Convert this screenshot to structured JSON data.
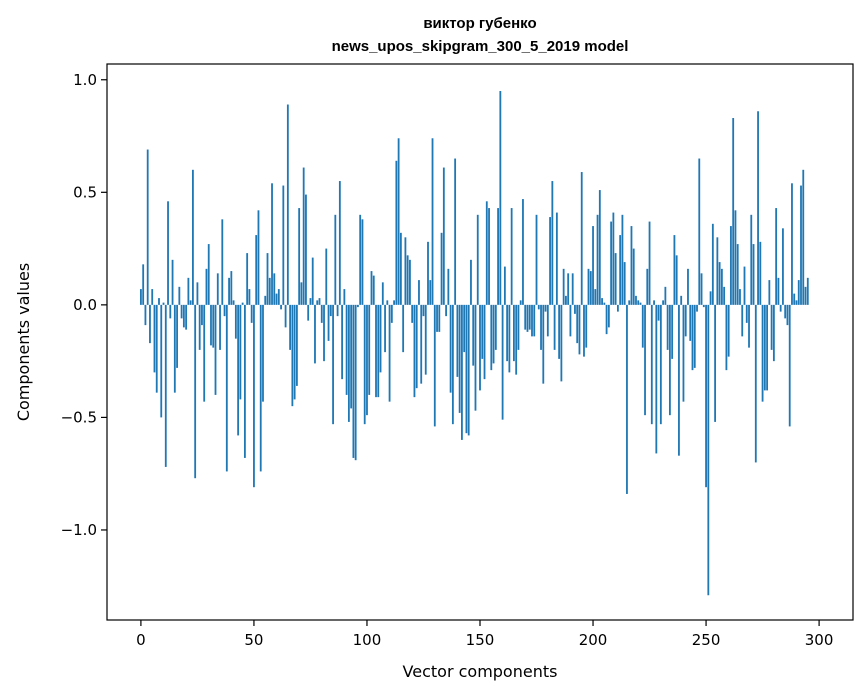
{
  "chart_data": {
    "type": "bar",
    "title": "виктор губенко",
    "subtitle": "news_upos_skipgram_300_5_2019 model",
    "xlabel": "Vector components",
    "ylabel": "Components values",
    "xlim": [
      -15,
      315
    ],
    "ylim": [
      -1.4,
      1.07
    ],
    "x_ticks": [
      0,
      50,
      100,
      150,
      200,
      250,
      300
    ],
    "x_tick_labels": [
      "0",
      "50",
      "100",
      "150",
      "200",
      "250",
      "300"
    ],
    "y_ticks": [
      -1.0,
      -0.5,
      0.0,
      0.5,
      1.0
    ],
    "y_tick_labels": [
      "−1.0",
      "−0.5",
      "0.0",
      "0.5",
      "1.0"
    ],
    "bar_color": "#1f77b4",
    "grid": false,
    "legend": "none",
    "values": [
      0.07,
      0.18,
      -0.09,
      0.69,
      -0.17,
      0.07,
      -0.3,
      -0.39,
      0.03,
      -0.5,
      0.01,
      -0.72,
      0.46,
      -0.06,
      0.2,
      -0.39,
      -0.28,
      0.08,
      -0.06,
      -0.1,
      -0.11,
      0.12,
      0.02,
      0.6,
      -0.77,
      0.1,
      -0.2,
      -0.09,
      -0.43,
      0.16,
      0.27,
      -0.18,
      -0.19,
      -0.4,
      0.14,
      -0.2,
      0.38,
      -0.05,
      -0.74,
      0.12,
      0.15,
      0.02,
      -0.15,
      -0.58,
      -0.42,
      0.01,
      -0.68,
      0.23,
      0.07,
      -0.08,
      -0.81,
      0.31,
      0.42,
      -0.74,
      -0.43,
      0.04,
      0.23,
      0.12,
      0.54,
      0.14,
      0.05,
      0.07,
      -0.02,
      0.53,
      -0.1,
      0.89,
      -0.2,
      -0.45,
      -0.42,
      -0.36,
      0.43,
      0.1,
      0.61,
      0.49,
      -0.07,
      0.03,
      0.21,
      -0.26,
      0.02,
      0.03,
      -0.08,
      -0.25,
      0.25,
      -0.16,
      -0.05,
      -0.53,
      0.4,
      -0.05,
      0.55,
      -0.33,
      0.07,
      -0.4,
      -0.52,
      -0.46,
      -0.68,
      -0.69,
      -0.01,
      0.4,
      0.38,
      -0.53,
      -0.49,
      -0.4,
      0.15,
      0.13,
      -0.41,
      -0.41,
      -0.3,
      0.1,
      -0.21,
      0.02,
      -0.43,
      -0.08,
      0.02,
      0.64,
      0.74,
      0.32,
      -0.21,
      0.3,
      0.22,
      0.2,
      -0.08,
      -0.41,
      -0.37,
      0.11,
      -0.35,
      -0.05,
      -0.31,
      0.28,
      0.11,
      0.74,
      -0.54,
      -0.12,
      -0.12,
      0.32,
      0.61,
      -0.05,
      0.16,
      -0.39,
      -0.53,
      0.65,
      -0.32,
      -0.48,
      -0.6,
      -0.21,
      -0.57,
      -0.58,
      0.2,
      -0.27,
      -0.47,
      0.4,
      -0.38,
      -0.24,
      -0.33,
      0.46,
      0.43,
      -0.29,
      -0.26,
      -0.2,
      0.43,
      0.95,
      -0.51,
      0.17,
      -0.25,
      -0.3,
      0.43,
      -0.25,
      -0.31,
      -0.2,
      0.02,
      0.47,
      -0.11,
      -0.12,
      -0.11,
      -0.14,
      -0.14,
      0.4,
      -0.02,
      -0.2,
      -0.35,
      -0.03,
      -0.14,
      0.39,
      0.55,
      -0.2,
      0.41,
      -0.24,
      -0.34,
      0.16,
      0.04,
      0.14,
      -0.14,
      0.14,
      -0.04,
      -0.17,
      -0.22,
      0.59,
      -0.23,
      -0.19,
      0.16,
      0.15,
      0.35,
      0.07,
      0.4,
      0.51,
      0.03,
      0.01,
      -0.13,
      -0.1,
      0.37,
      0.41,
      0.23,
      -0.03,
      0.31,
      0.4,
      0.19,
      -0.84,
      0.02,
      0.35,
      0.25,
      0.04,
      0.02,
      0.01,
      -0.19,
      -0.49,
      0.16,
      0.37,
      -0.53,
      0.02,
      -0.66,
      -0.07,
      -0.53,
      0.02,
      0.08,
      -0.2,
      -0.49,
      -0.24,
      0.31,
      0.22,
      -0.67,
      0.04,
      -0.43,
      -0.14,
      0.16,
      -0.16,
      -0.29,
      -0.28,
      -0.03,
      0.65,
      0.14,
      -0.01,
      -0.81,
      -1.29,
      0.06,
      0.36,
      -0.52,
      0.3,
      0.19,
      0.16,
      0.08,
      -0.29,
      -0.23,
      0.35,
      0.83,
      0.42,
      0.27,
      0.07,
      -0.14,
      0.17,
      -0.08,
      -0.19,
      0.4,
      0.27,
      -0.7,
      0.86,
      0.28,
      -0.43,
      -0.38,
      -0.38,
      0.11,
      -0.2,
      -0.25,
      0.43,
      0.12,
      -0.03,
      0.34,
      -0.06,
      -0.09,
      -0.54,
      0.54,
      0.05,
      0.02,
      0.11,
      0.53,
      0.6,
      0.08,
      0.12
    ]
  }
}
